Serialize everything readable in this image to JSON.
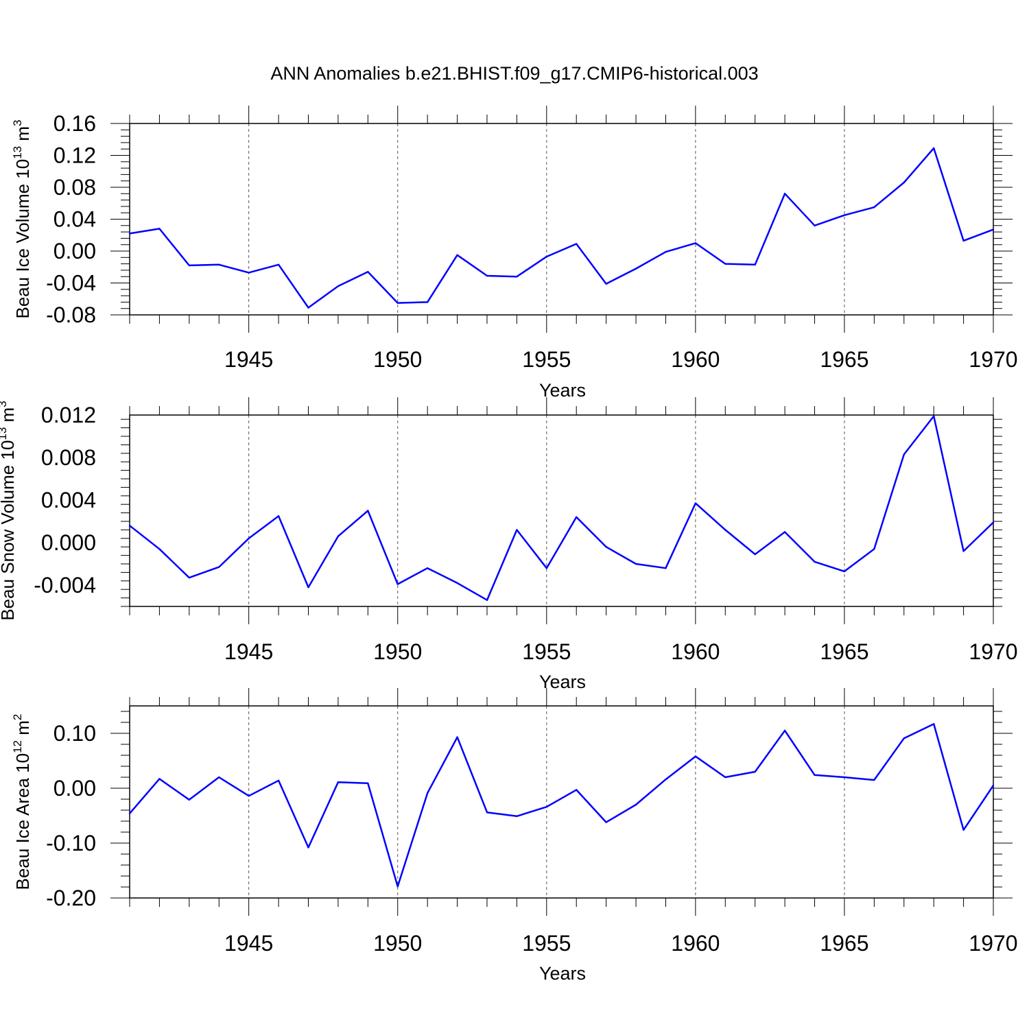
{
  "title": "ANN Anomalies b.e21.BHIST.f09_g17.CMIP6-historical.003",
  "chart_data": [
    {
      "type": "line",
      "title": "ANN Anomalies b.e21.BHIST.f09_g17.CMIP6-historical.003",
      "ylabel": {
        "text": "Beau Ice Volume 10",
        "exp": "13",
        "unit": " m",
        "unit_exp": "3"
      },
      "xlabel": "Years",
      "xlim": [
        1941,
        1970
      ],
      "ylim": [
        -0.08,
        0.16
      ],
      "xticks": [
        "1945",
        "1950",
        "1955",
        "1960",
        "1965",
        "1970"
      ],
      "yticks": [
        "-0.08",
        "-0.04",
        "0.00",
        "0.04",
        "0.08",
        "0.12",
        "0.16"
      ],
      "series": [
        {
          "name": "Beau Ice Volume",
          "color": "#0000ff",
          "x": [
            1941,
            1942,
            1943,
            1944,
            1945,
            1946,
            1947,
            1948,
            1949,
            1950,
            1951,
            1952,
            1953,
            1954,
            1955,
            1956,
            1957,
            1958,
            1959,
            1960,
            1961,
            1962,
            1963,
            1964,
            1965,
            1966,
            1967,
            1968,
            1969,
            1970
          ],
          "values": [
            0.022,
            0.028,
            -0.018,
            -0.017,
            -0.027,
            -0.017,
            -0.071,
            -0.044,
            -0.026,
            -0.065,
            -0.064,
            -0.005,
            -0.031,
            -0.032,
            -0.007,
            0.009,
            -0.041,
            -0.022,
            -0.001,
            0.01,
            -0.016,
            -0.017,
            0.072,
            0.032,
            0.045,
            0.055,
            0.086,
            0.129,
            0.013,
            0.027
          ]
        }
      ]
    },
    {
      "type": "line",
      "ylabel": {
        "text": "Beau Snow Volume 10",
        "exp": "13",
        "unit": " m",
        "unit_exp": "3"
      },
      "xlabel": "Years",
      "xlim": [
        1941,
        1970
      ],
      "ylim": [
        -0.006,
        0.012
      ],
      "xticks": [
        "1945",
        "1950",
        "1955",
        "1960",
        "1965",
        "1970"
      ],
      "yticks": [
        "-0.004",
        "0.000",
        "0.004",
        "0.008",
        "0.012"
      ],
      "series": [
        {
          "name": "Beau Snow Volume",
          "color": "#0000ff",
          "x": [
            1941,
            1942,
            1943,
            1944,
            1945,
            1946,
            1947,
            1948,
            1949,
            1950,
            1951,
            1952,
            1953,
            1954,
            1955,
            1956,
            1957,
            1958,
            1959,
            1960,
            1961,
            1962,
            1963,
            1964,
            1965,
            1966,
            1967,
            1968,
            1969,
            1970
          ],
          "values": [
            0.0016,
            -0.0006,
            -0.0033,
            -0.0023,
            0.0004,
            0.0025,
            -0.0042,
            0.0006,
            0.003,
            -0.0039,
            -0.0024,
            -0.0038,
            -0.0054,
            0.0012,
            -0.0024,
            0.0024,
            -0.0004,
            -0.002,
            -0.0024,
            0.0037,
            0.0012,
            -0.0011,
            0.001,
            -0.0018,
            -0.0027,
            -0.0006,
            0.0083,
            0.0119,
            -0.0008,
            0.0019
          ]
        }
      ]
    },
    {
      "type": "line",
      "ylabel": {
        "text": "Beau Ice Area 10",
        "exp": "12",
        "unit": " m",
        "unit_exp": "2"
      },
      "xlabel": "Years",
      "xlim": [
        1941,
        1970
      ],
      "ylim": [
        -0.2,
        0.15
      ],
      "xticks": [
        "1945",
        "1950",
        "1955",
        "1960",
        "1965",
        "1970"
      ],
      "yticks": [
        "-0.20",
        "-0.10",
        "0.00",
        "0.10"
      ],
      "series": [
        {
          "name": "Beau Ice Area",
          "color": "#0000ff",
          "x": [
            1941,
            1942,
            1943,
            1944,
            1945,
            1946,
            1947,
            1948,
            1949,
            1950,
            1951,
            1952,
            1953,
            1954,
            1955,
            1956,
            1957,
            1958,
            1959,
            1960,
            1961,
            1962,
            1963,
            1964,
            1965,
            1966,
            1967,
            1968,
            1969,
            1970
          ],
          "values": [
            -0.046,
            0.017,
            -0.021,
            0.02,
            -0.014,
            0.014,
            -0.108,
            0.011,
            0.009,
            -0.179,
            -0.009,
            0.093,
            -0.044,
            -0.051,
            -0.034,
            -0.003,
            -0.062,
            -0.03,
            0.016,
            0.058,
            0.02,
            0.03,
            0.105,
            0.024,
            0.02,
            0.015,
            0.091,
            0.117,
            -0.076,
            0.005
          ]
        }
      ]
    }
  ]
}
